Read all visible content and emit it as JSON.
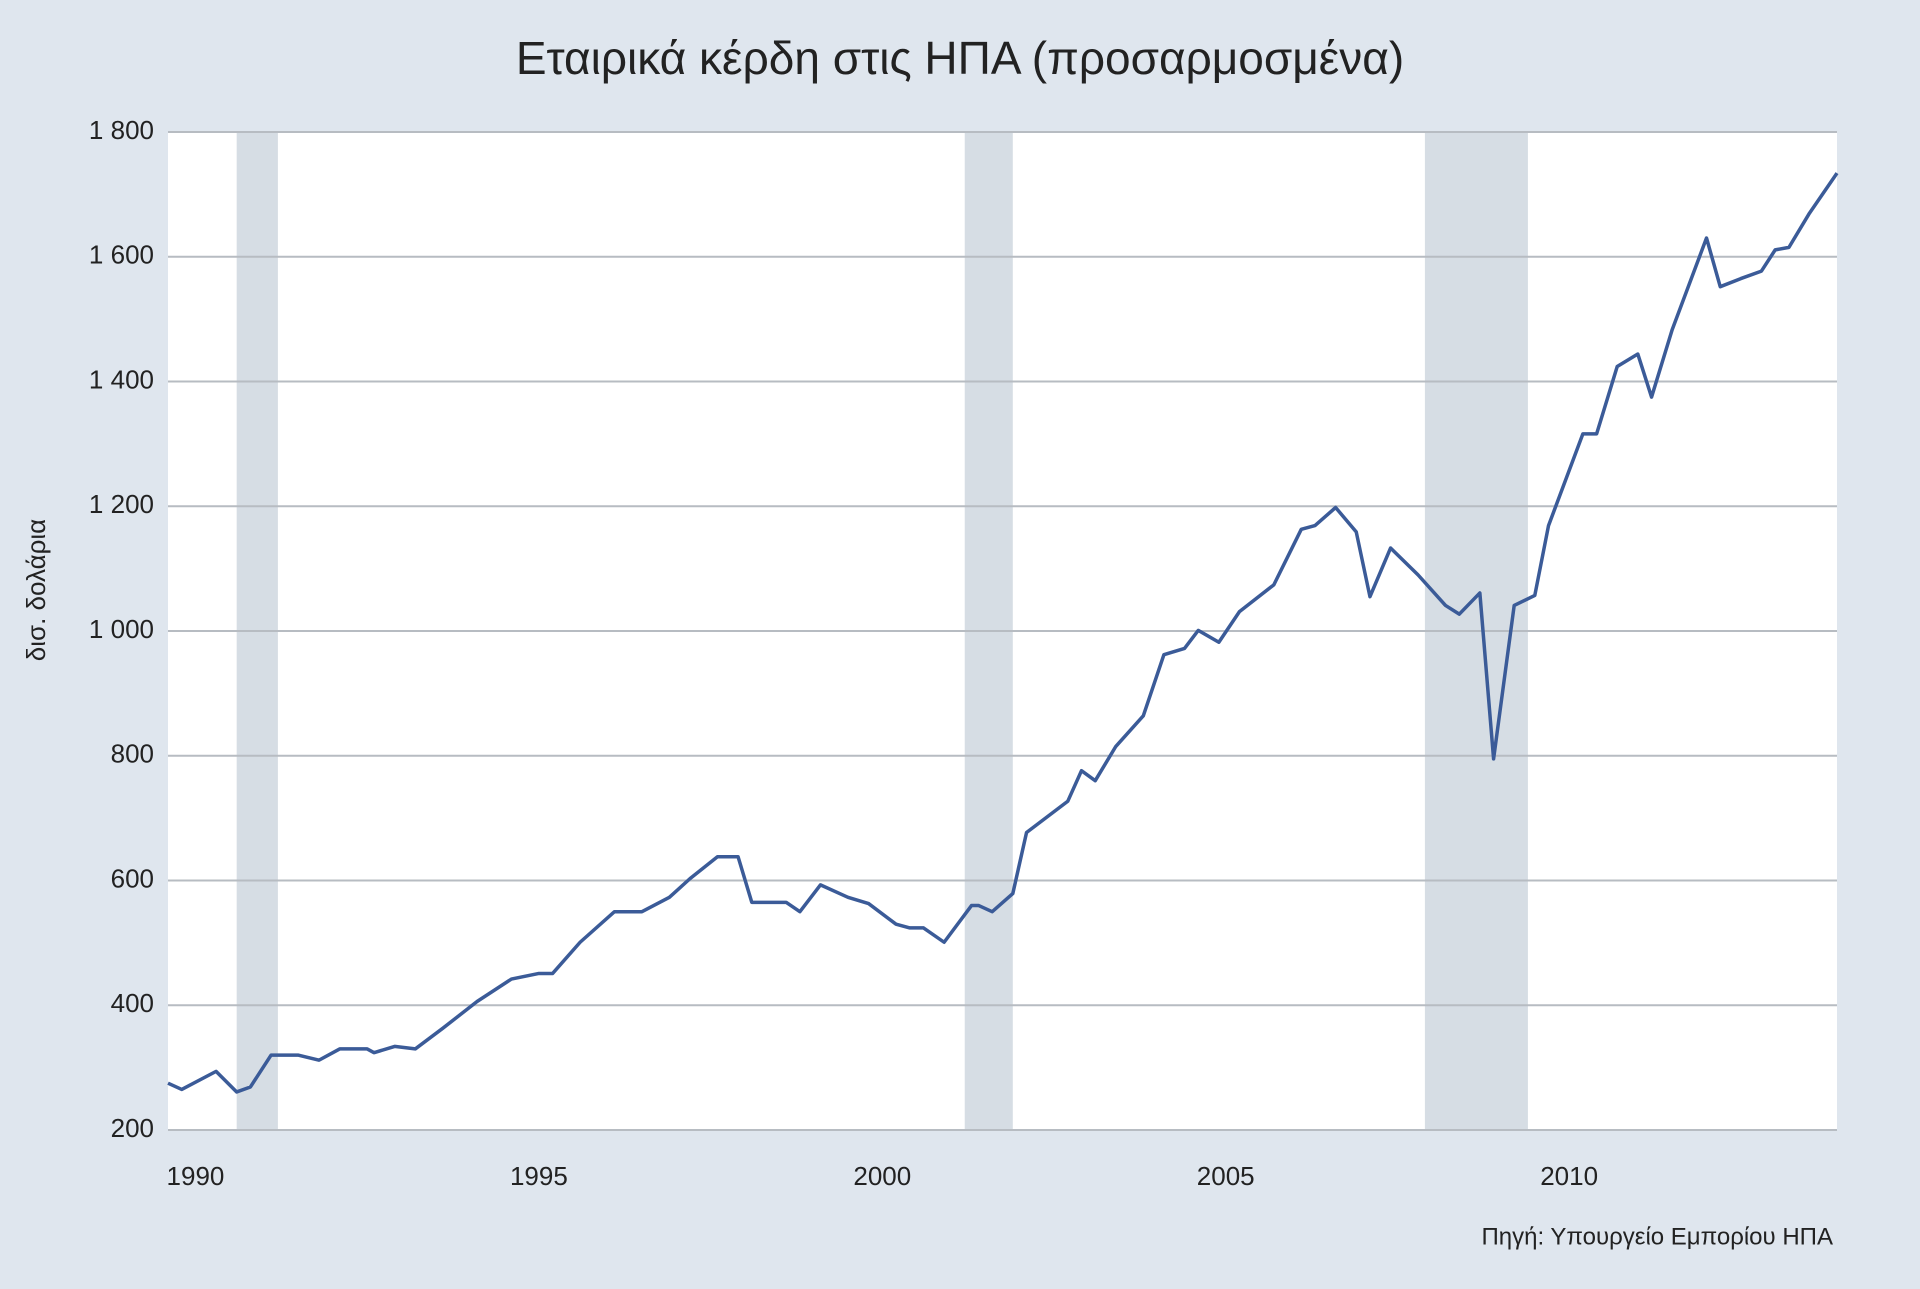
{
  "chart_data": {
    "type": "line",
    "title": "Εταιρικά κέρδη στις ΗΠΑ (προσαρμοσμένα)",
    "y_label": "δισ. δολάρια",
    "source": "Πηγή: Υπουργείο Εμπορίου ΗΠΑ",
    "x": [
      1989.6,
      1989.8,
      1990.3,
      1990.6,
      1990.8,
      1991.1,
      1991.5,
      1991.8,
      1992.1,
      1992.5,
      1992.6,
      1992.9,
      1993.2,
      1993.6,
      1994.1,
      1994.6,
      1995.0,
      1995.2,
      1995.6,
      1996.1,
      1996.5,
      1996.9,
      1997.2,
      1997.6,
      1997.9,
      1998.1,
      1998.6,
      1998.8,
      1999.1,
      1999.5,
      1999.8,
      2000.2,
      2000.4,
      2000.6,
      2000.9,
      2001.3,
      2001.4,
      2001.6,
      2001.9,
      2002.1,
      2002.7,
      2002.9,
      2003.1,
      2003.4,
      2003.8,
      2004.1,
      2004.4,
      2004.6,
      2004.9,
      2005.2,
      2005.7,
      2006.1,
      2006.3,
      2006.6,
      2006.9,
      2007.1,
      2007.4,
      2007.8,
      2008.2,
      2008.4,
      2008.7,
      2008.9,
      2009.2,
      2009.5,
      2009.7,
      2010.2,
      2010.4,
      2010.7,
      2011.0,
      2011.2,
      2011.5,
      2012.0,
      2012.2,
      2012.5,
      2012.8,
      2013.0,
      2013.2,
      2013.5,
      2013.9
    ],
    "series": [
      {
        "name": "Εταιρικά κέρδη",
        "color": "#3b5b98",
        "values": [
          275,
          265,
          294,
          261,
          269,
          320,
          320,
          312,
          330,
          330,
          324,
          334,
          330,
          363,
          406,
          442,
          451,
          451,
          501,
          550,
          550,
          573,
          603,
          638,
          638,
          565,
          565,
          550,
          593,
          573,
          563,
          530,
          524,
          524,
          501,
          560,
          560,
          550,
          579,
          677,
          727,
          776,
          760,
          815,
          864,
          962,
          972,
          1001,
          982,
          1031,
          1074,
          1163,
          1169,
          1198,
          1159,
          1055,
          1133,
          1090,
          1041,
          1027,
          1061,
          795,
          1041,
          1057,
          1169,
          1316,
          1316,
          1424,
          1444,
          1375,
          1483,
          1630,
          1552,
          1565,
          1577,
          1611,
          1615,
          1670,
          1734
        ]
      }
    ],
    "shaded_periods": [
      [
        1990.6,
        1991.2
      ],
      [
        2001.2,
        2001.9
      ],
      [
        2007.9,
        2009.4
      ]
    ],
    "shade_color": "#d6dde4",
    "xlim": [
      1989.6,
      2013.9
    ],
    "xticks": [
      1990,
      1995,
      2000,
      2005,
      2010
    ],
    "ylim": [
      200,
      1800
    ],
    "yticks": [
      200,
      400,
      600,
      800,
      {
        "value": 1000,
        "label": "1 000"
      },
      {
        "value": 1200,
        "label": "1 200"
      },
      {
        "value": 1400,
        "label": "1 400"
      },
      {
        "value": 1600,
        "label": "1 600"
      },
      {
        "value": 1800,
        "label": "1 800"
      }
    ],
    "grid": true
  }
}
